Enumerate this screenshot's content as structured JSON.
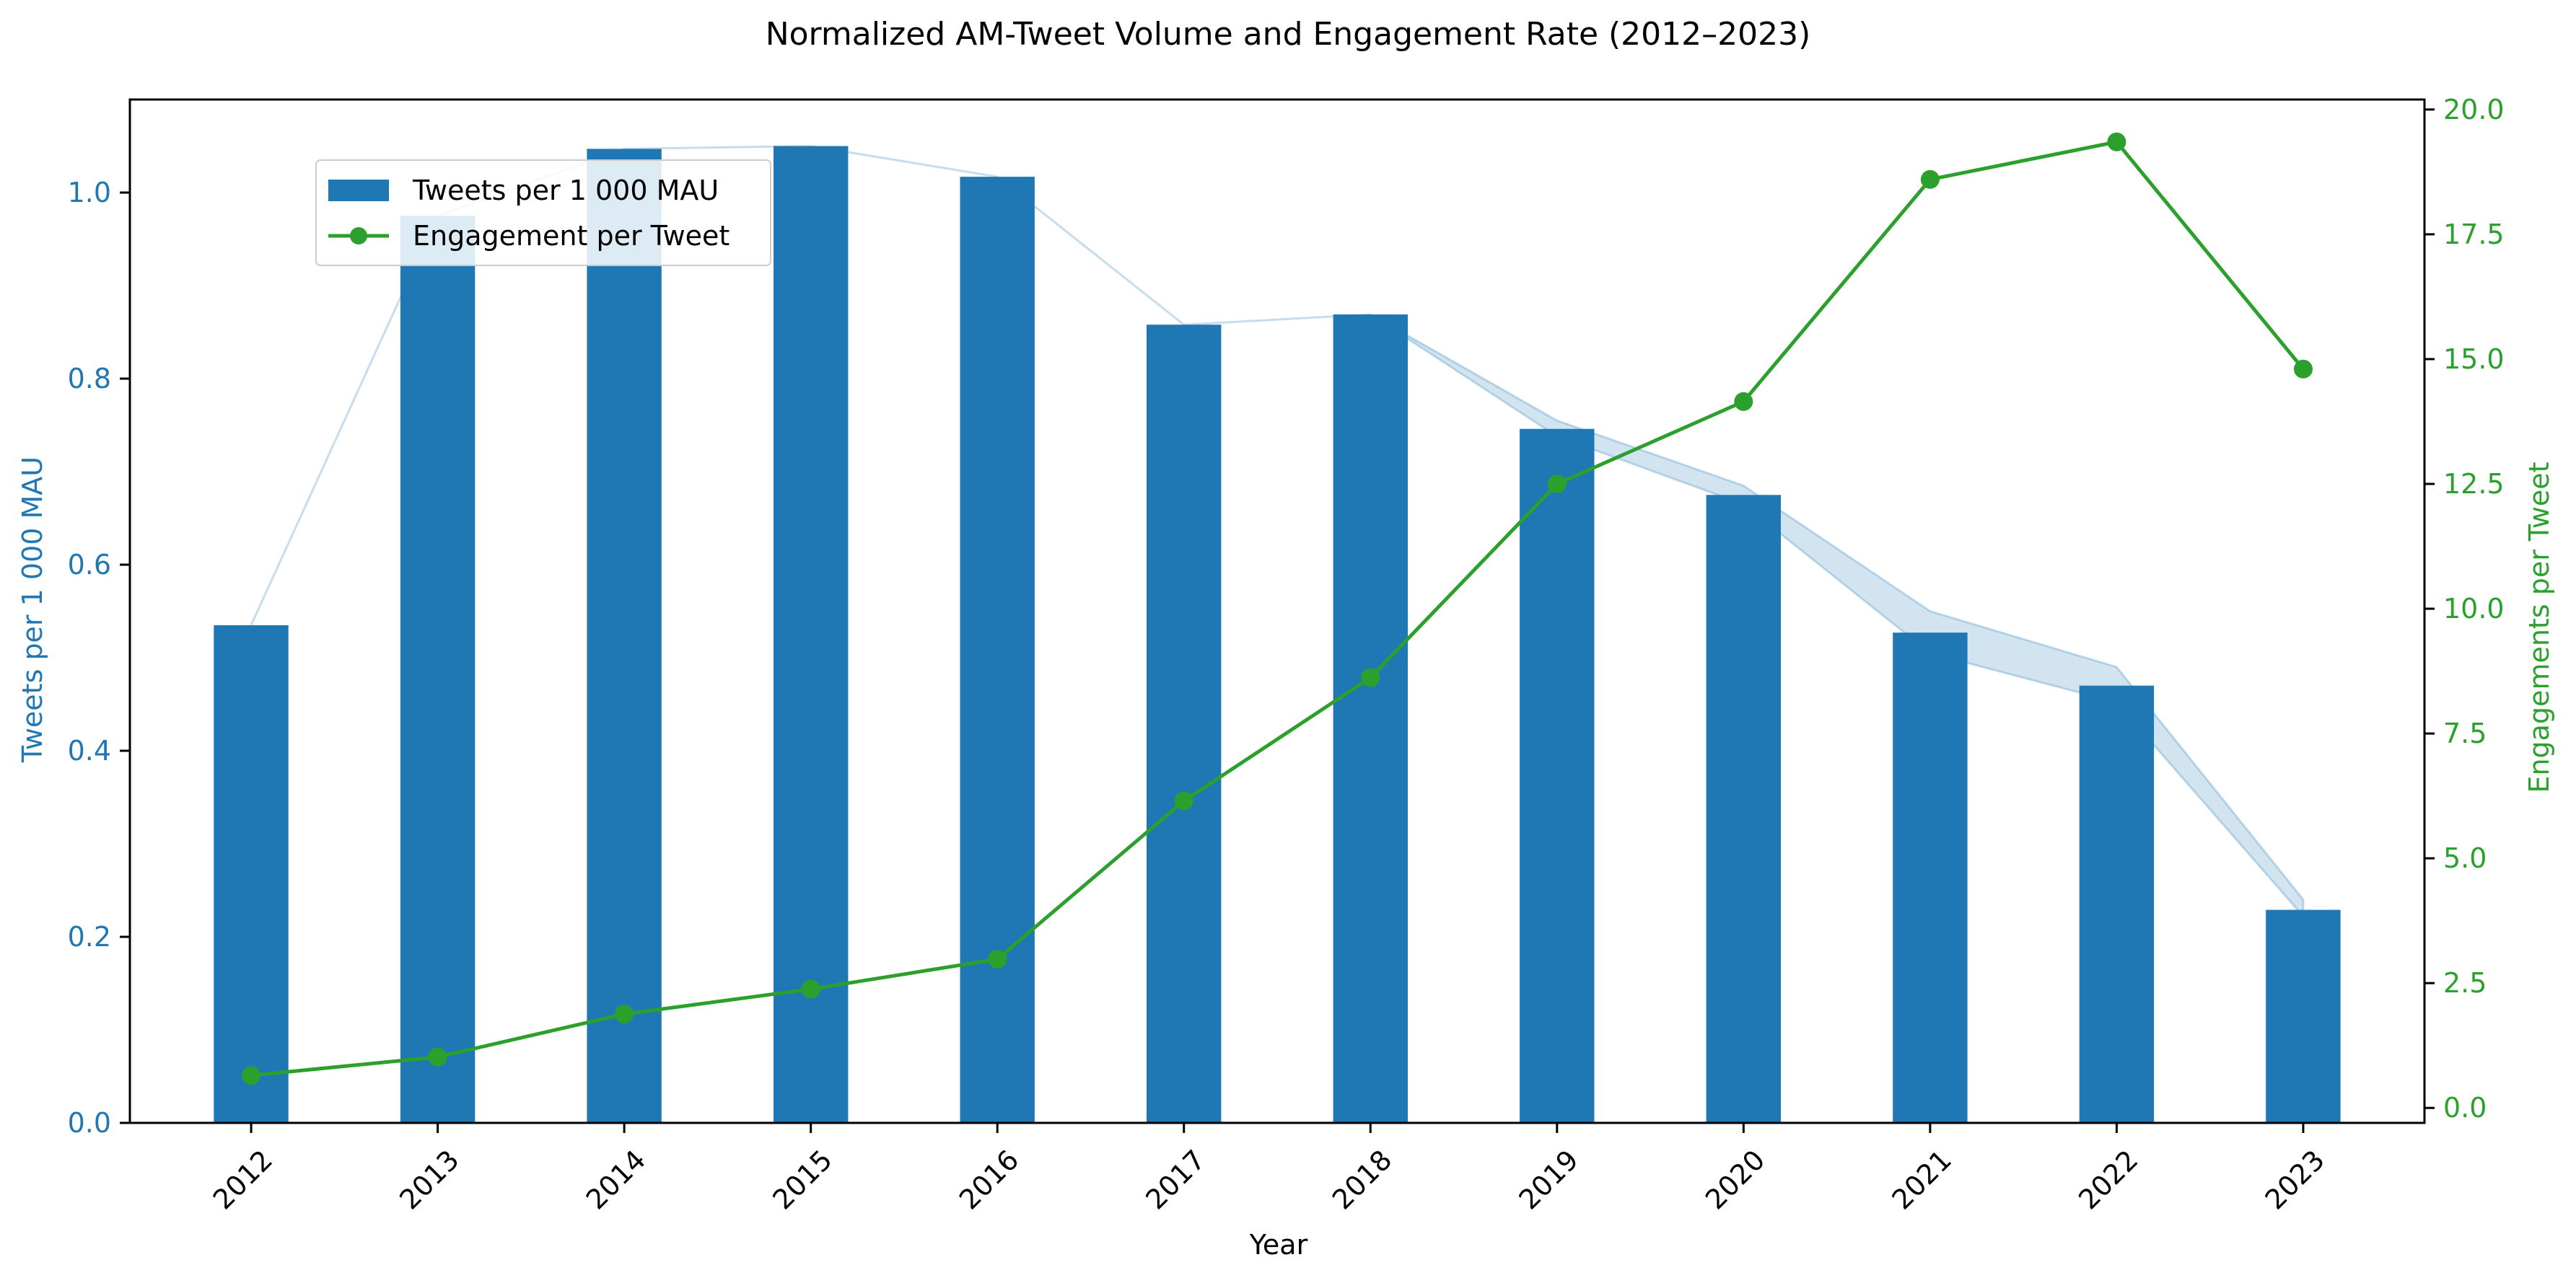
{
  "chart_data": {
    "type": "bar",
    "title": "Normalized AM-Tweet Volume and Engagement Rate (2012–2023)",
    "xlabel": "Year",
    "ylabel_left": "Tweets per 1 000 MAU",
    "ylabel_right": "Engagements per Tweet",
    "categories": [
      "2012",
      "2013",
      "2014",
      "2015",
      "2016",
      "2017",
      "2018",
      "2019",
      "2020",
      "2021",
      "2022",
      "2023"
    ],
    "ylim_left": [
      0,
      1.1
    ],
    "ylim_right": [
      -0.3,
      20.2
    ],
    "yticks_left": [
      "0.0",
      "0.2",
      "0.4",
      "0.6",
      "0.8",
      "1.0"
    ],
    "yticks_left_values": [
      0,
      0.2,
      0.4,
      0.6,
      0.8,
      1.0
    ],
    "yticks_right": [
      "0.0",
      "2.5",
      "5.0",
      "7.5",
      "10.0",
      "12.5",
      "15.0",
      "17.5",
      "20.0"
    ],
    "yticks_right_values": [
      0,
      2.5,
      5,
      7.5,
      10,
      12.5,
      15,
      17.5,
      20
    ],
    "legend_position": "upper-left",
    "grid": false,
    "series": [
      {
        "name": "Tweets per 1 000 MAU",
        "type": "bar",
        "axis": "left",
        "color": "#1f77b4",
        "values": [
          0.535,
          0.975,
          1.047,
          1.05,
          1.017,
          0.858,
          0.869,
          0.746,
          0.675,
          0.527,
          0.47,
          0.229
        ]
      },
      {
        "name": "Engagement per Tweet",
        "type": "line",
        "axis": "right",
        "color": "#2ca02c",
        "values": [
          0.65,
          1.02,
          1.88,
          2.38,
          2.98,
          6.15,
          8.62,
          12.5,
          14.15,
          18.6,
          19.35,
          14.8
        ]
      }
    ],
    "band": {
      "color": "#1f77b4",
      "upper": [
        0.535,
        0.975,
        1.047,
        1.05,
        1.017,
        0.858,
        0.869,
        0.755,
        0.685,
        0.55,
        0.49,
        0.24
      ],
      "lower": [
        0.535,
        0.975,
        1.047,
        1.05,
        1.017,
        0.858,
        0.869,
        0.738,
        0.665,
        0.505,
        0.452,
        0.222
      ]
    },
    "colors": {
      "left_axis": "#1f77b4",
      "right_axis": "#2ca02c",
      "band": "#1f77b4"
    }
  }
}
